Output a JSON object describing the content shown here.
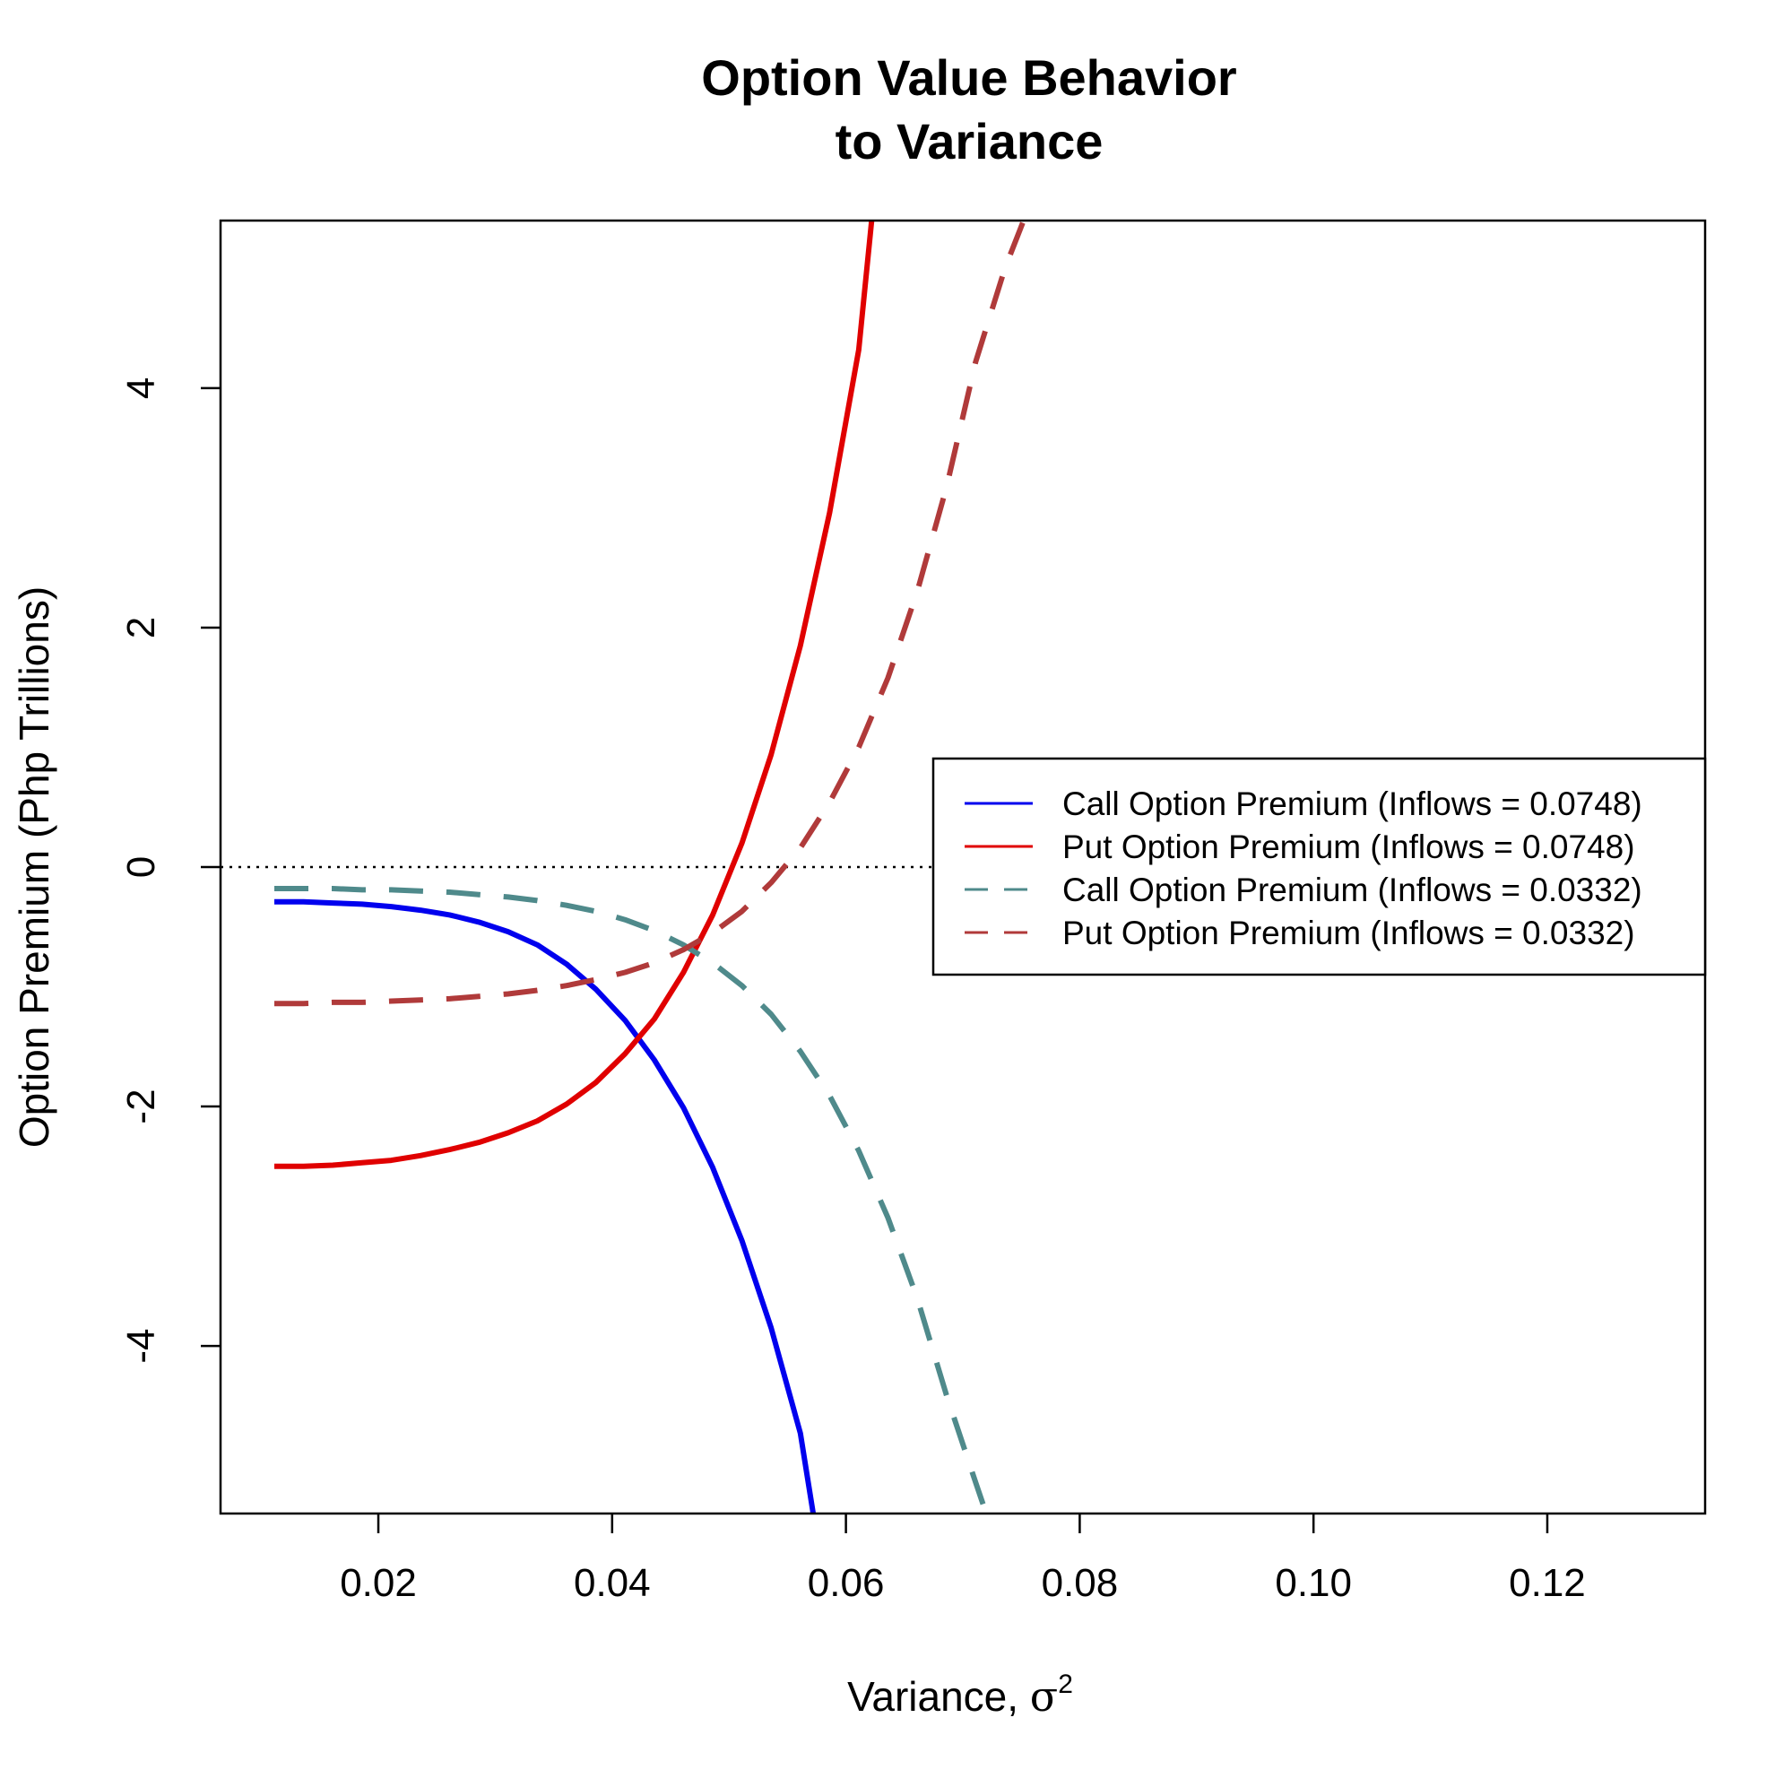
{
  "chart_data": {
    "type": "line",
    "title_line1": "Option Value Behavior",
    "title_line2": "to Variance",
    "xlabel": "Variance, ",
    "xlabel_symbol": "σ",
    "xlabel_superscript": "2",
    "ylabel": "Option Premium (Php Trillions)",
    "xlim": [
      0.0065,
      0.1335
    ],
    "ylim": [
      -5.4,
      5.4
    ],
    "x_ticks": [
      0.02,
      0.04,
      0.06,
      0.08,
      0.1,
      0.12
    ],
    "x_tick_labels": [
      "0.02",
      "0.04",
      "0.06",
      "0.08",
      "0.10",
      "0.12"
    ],
    "y_ticks": [
      -4,
      -2,
      0,
      2,
      4
    ],
    "y_tick_labels": [
      "-4",
      "-2",
      "0",
      "2",
      "4"
    ],
    "reference_line_y": 0,
    "legend_position": "right",
    "series": [
      {
        "name": "Call Option Premium (Inflows = 0.0748)",
        "color": "#0000ee",
        "dash": "solid",
        "x": [
          0.0111,
          0.0136,
          0.0161,
          0.0186,
          0.0211,
          0.0236,
          0.0261,
          0.0286,
          0.0311,
          0.0336,
          0.0361,
          0.0386,
          0.0411,
          0.0436,
          0.0461,
          0.0486,
          0.0511,
          0.0536,
          0.0561,
          0.0572
        ],
        "values": [
          -0.29,
          -0.29,
          -0.3,
          -0.31,
          -0.33,
          -0.36,
          -0.4,
          -0.46,
          -0.54,
          -0.65,
          -0.81,
          -1.02,
          -1.28,
          -1.61,
          -2.01,
          -2.51,
          -3.12,
          -3.85,
          -4.73,
          -5.4
        ]
      },
      {
        "name": "Put Option Premium (Inflows = 0.0748)",
        "color": "#e00000",
        "dash": "solid",
        "x": [
          0.0111,
          0.0136,
          0.0161,
          0.0186,
          0.0211,
          0.0236,
          0.0261,
          0.0286,
          0.0311,
          0.0336,
          0.0361,
          0.0386,
          0.0411,
          0.0436,
          0.0461,
          0.0486,
          0.0511,
          0.0536,
          0.0561,
          0.0586,
          0.0611,
          0.0622
        ],
        "values": [
          -2.5,
          -2.5,
          -2.49,
          -2.47,
          -2.45,
          -2.41,
          -2.36,
          -2.3,
          -2.22,
          -2.12,
          -1.98,
          -1.8,
          -1.56,
          -1.27,
          -0.88,
          -0.4,
          0.2,
          0.94,
          1.85,
          2.96,
          4.32,
          5.4
        ]
      },
      {
        "name": "Call Option Premium (Inflows = 0.0332)",
        "color": "#4f8a8b",
        "dash": "dashed",
        "x": [
          0.0111,
          0.0136,
          0.0161,
          0.0186,
          0.0211,
          0.0236,
          0.0261,
          0.0286,
          0.0311,
          0.0336,
          0.0361,
          0.0386,
          0.0411,
          0.0436,
          0.0461,
          0.0486,
          0.0511,
          0.0536,
          0.0561,
          0.0586,
          0.0611,
          0.0636,
          0.0661,
          0.0686,
          0.0711,
          0.072
        ],
        "values": [
          -0.18,
          -0.18,
          -0.18,
          -0.19,
          -0.19,
          -0.2,
          -0.21,
          -0.23,
          -0.25,
          -0.28,
          -0.32,
          -0.37,
          -0.44,
          -0.53,
          -0.65,
          -0.8,
          -0.99,
          -1.23,
          -1.54,
          -1.91,
          -2.37,
          -2.93,
          -3.6,
          -4.41,
          -5.14,
          -5.4
        ]
      },
      {
        "name": "Put Option Premium (Inflows = 0.0332)",
        "color": "#b03a3a",
        "dash": "dashed",
        "x": [
          0.0111,
          0.0136,
          0.0161,
          0.0186,
          0.0211,
          0.0236,
          0.0261,
          0.0286,
          0.0311,
          0.0336,
          0.0361,
          0.0386,
          0.0411,
          0.0436,
          0.0461,
          0.0486,
          0.0511,
          0.0536,
          0.0561,
          0.0586,
          0.0611,
          0.0636,
          0.0661,
          0.0686,
          0.0711,
          0.0736,
          0.0752
        ],
        "values": [
          -1.14,
          -1.14,
          -1.13,
          -1.13,
          -1.12,
          -1.11,
          -1.1,
          -1.08,
          -1.06,
          -1.03,
          -0.99,
          -0.94,
          -0.88,
          -0.8,
          -0.69,
          -0.55,
          -0.37,
          -0.13,
          0.16,
          0.54,
          1.0,
          1.58,
          2.3,
          3.17,
          4.22,
          5.0,
          5.4
        ]
      }
    ]
  }
}
